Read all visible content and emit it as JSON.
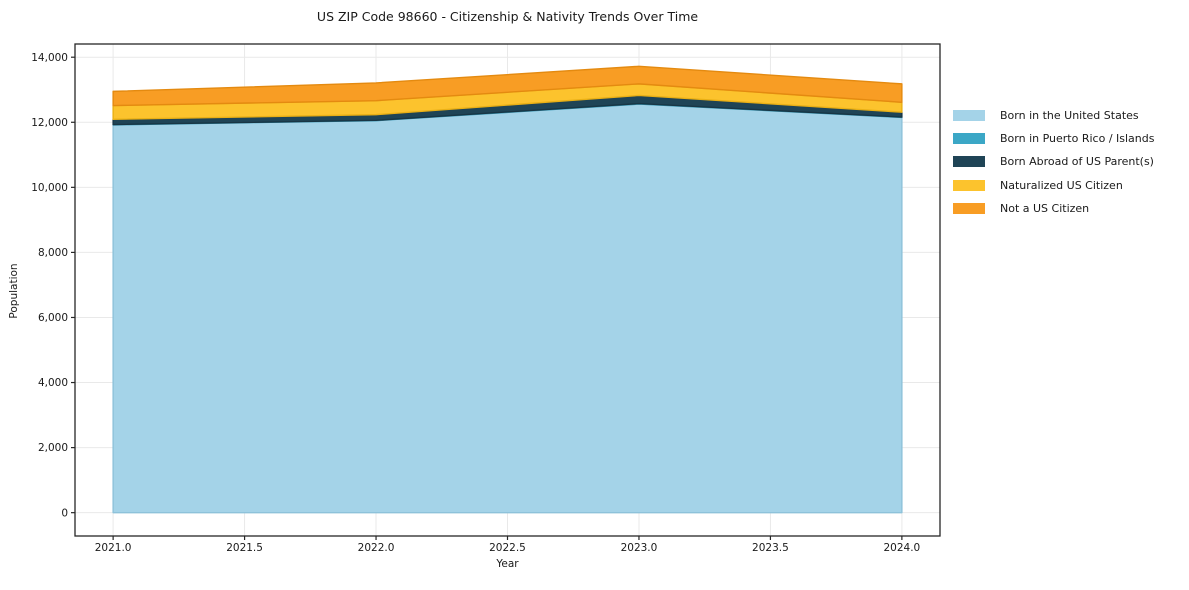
{
  "chart_data": {
    "type": "area",
    "stacked": true,
    "title": "US ZIP Code 98660 - Citizenship & Nativity Trends Over Time",
    "xlabel": "Year",
    "ylabel": "Population",
    "x": [
      2021,
      2022,
      2023,
      2024
    ],
    "series": [
      {
        "name": "Born in the United States",
        "color": "#a4d3e8",
        "edge": "#8ec2da",
        "values": [
          11920,
          12050,
          12560,
          12150
        ]
      },
      {
        "name": "Born in Puerto Rico / Islands",
        "color": "#3ba7c6",
        "edge": "#3194b1",
        "values": [
          10,
          10,
          15,
          10
        ]
      },
      {
        "name": "Born Abroad of US Parent(s)",
        "color": "#1f4456",
        "edge": "#183645",
        "values": [
          160,
          175,
          250,
          150
        ]
      },
      {
        "name": "Naturalized US Citizen",
        "color": "#fcc32d",
        "edge": "#eab015",
        "values": [
          425,
          430,
          355,
          305
        ]
      },
      {
        "name": "Not a US Citizen",
        "color": "#f89d24",
        "edge": "#e48a10",
        "values": [
          435,
          545,
          540,
          565
        ]
      }
    ],
    "totals": [
      12950,
      13210,
      13720,
      13180
    ],
    "xlim": [
      2020.855,
      2024.145
    ],
    "ylim": [
      -717,
      14406
    ],
    "xticks": {
      "values": [
        2021.0,
        2021.5,
        2022.0,
        2022.5,
        2023.0,
        2023.5,
        2024.0
      ],
      "labels": [
        "2021.0",
        "2021.5",
        "2022.0",
        "2022.5",
        "2023.0",
        "2023.5",
        "2024.0"
      ]
    },
    "yticks": {
      "values": [
        0,
        2000,
        4000,
        6000,
        8000,
        10000,
        12000,
        14000
      ],
      "labels": [
        "0",
        "2,000",
        "4,000",
        "6,000",
        "8,000",
        "10,000",
        "12,000",
        "14,000"
      ]
    },
    "grid": true,
    "legend_position": "center-right outside"
  },
  "style": {
    "grid_color": "#e9e9e9",
    "spine_color": "#262626",
    "tick_color": "#262626",
    "text_color": "#1a1a1a",
    "background": "#ffffff"
  }
}
